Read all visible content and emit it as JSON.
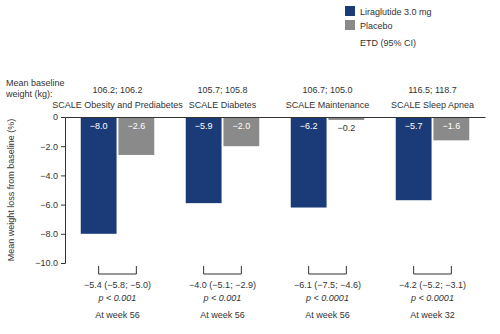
{
  "chart_data": {
    "type": "bar",
    "categories": [
      "SCALE Obesity and Prediabetes",
      "SCALE Diabetes",
      "SCALE Maintenance",
      "SCALE Sleep Apnea"
    ],
    "series": [
      {
        "name": "Liraglutide 3.0 mg",
        "color": "#1b3a78",
        "values": [
          -8.0,
          -5.9,
          -6.2,
          -5.7
        ],
        "value_labels": [
          "−8.0",
          "−5.9",
          "−6.2",
          "−5.7"
        ]
      },
      {
        "name": "Placebo",
        "color": "#8a8a8a",
        "values": [
          -2.6,
          -2.0,
          -0.2,
          -1.6
        ],
        "value_labels": [
          "−2.6",
          "−2.0",
          "−0.2",
          "−1.6"
        ]
      }
    ],
    "y_label": "Mean weight loss from baseline (%)",
    "ylim": [
      -10,
      0
    ],
    "yticks": [
      0,
      {
        "value": -2,
        "label": "−2.0"
      },
      {
        "value": -4,
        "label": "−4.0"
      },
      {
        "value": -6,
        "label": "−6.0"
      },
      {
        "value": -8,
        "label": "−8.0"
      },
      {
        "value": -10,
        "label": "−10.0"
      }
    ],
    "legend": "top-right",
    "data_labels": true,
    "annotations": {
      "etd_title": "ETD (95% CI)",
      "baseline_title": [
        "Mean baseline",
        "weight (kg):"
      ],
      "groups": [
        {
          "baseline": "106.2; 106.2",
          "etd": "−5.4 (−5.8; −5.0)",
          "p": "p < 0.001",
          "week": "At week 56"
        },
        {
          "baseline": "105.7; 105.8",
          "etd": "−4.0 (−5.1; −2.9)",
          "p": "p < 0.001",
          "week": "At week 56"
        },
        {
          "baseline": "106.7; 105.0",
          "etd": "−6.1 (−7.5; −4.6)",
          "p": "p < 0.0001",
          "week": "At week 56"
        },
        {
          "baseline": "116.5; 118.7",
          "etd": "−4.2 (−5.2; −3.1)",
          "p": "p < 0.0001",
          "week": "At week 32"
        }
      ]
    }
  }
}
